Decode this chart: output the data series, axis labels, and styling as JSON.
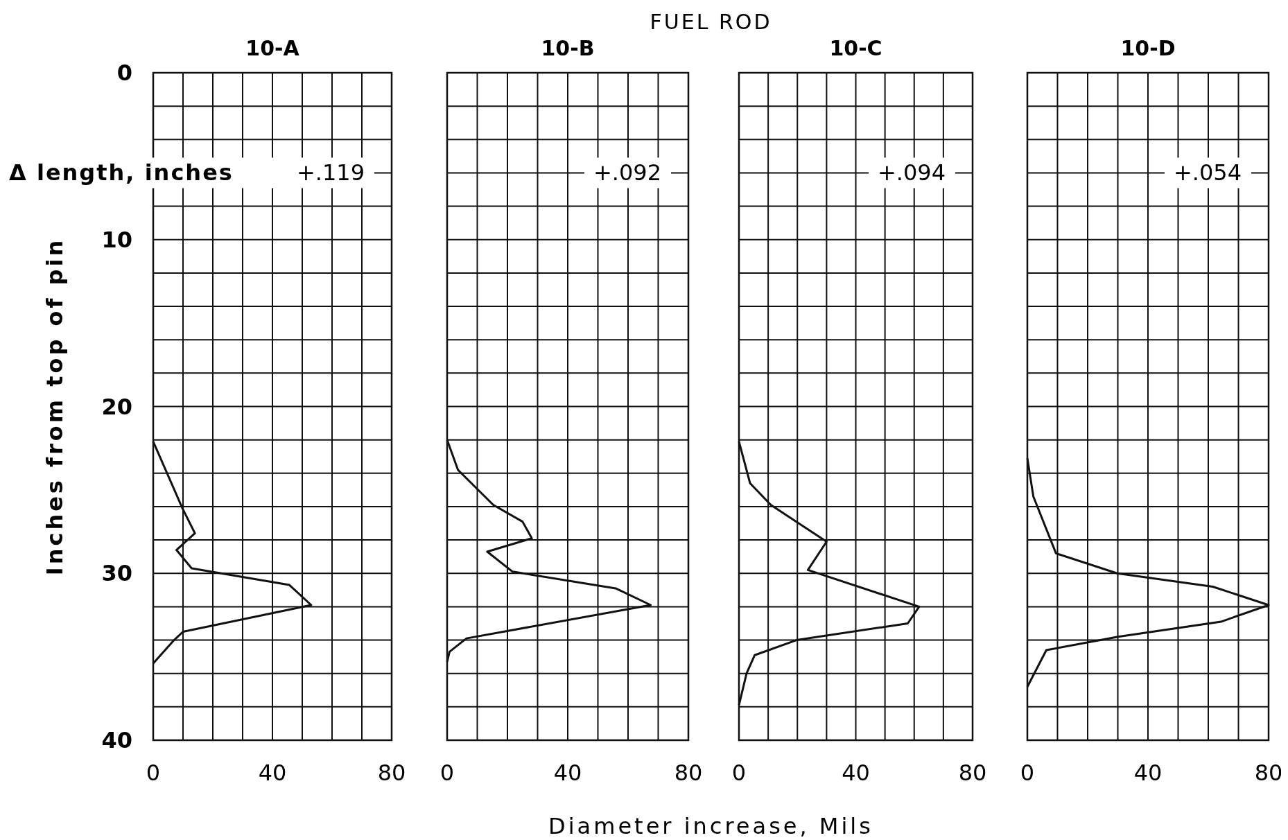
{
  "chart_data": [
    {
      "type": "line",
      "title": "10-A",
      "ylabel": "Inches from top of pin",
      "annotations": [
        "FUEL ROD",
        "Diameter increase, Mils",
        "Δ length, inches",
        "+.119"
      ],
      "x": [
        0,
        9.8,
        14,
        7.8,
        12.9,
        45.7,
        53,
        10,
        7,
        0
      ],
      "values": [
        22.1,
        26.1,
        27.6,
        28.6,
        29.7,
        30.7,
        31.9,
        33.5,
        34,
        35.4
      ],
      "color": "#111111",
      "xlim": [
        0,
        80
      ],
      "ylim": [
        40,
        0
      ],
      "xticks": [
        0,
        {
          "value": 10,
          "label": null
        },
        {
          "value": 20,
          "label": null
        },
        {
          "value": 30,
          "label": null
        },
        40,
        {
          "value": 50,
          "label": null
        },
        {
          "value": 60,
          "label": null
        },
        {
          "value": 70,
          "label": null
        },
        80
      ],
      "yticks": [
        0,
        {
          "value": 2,
          "label": null
        },
        {
          "value": 4,
          "label": null
        },
        {
          "value": 6,
          "label": null
        },
        {
          "value": 8,
          "label": null
        },
        10,
        {
          "value": 12,
          "label": null
        },
        {
          "value": 14,
          "label": null
        },
        {
          "value": 16,
          "label": null
        },
        {
          "value": 18,
          "label": null
        },
        20,
        {
          "value": 22,
          "label": null
        },
        {
          "value": 24,
          "label": null
        },
        {
          "value": 26,
          "label": null
        },
        {
          "value": 28,
          "label": null
        },
        30,
        {
          "value": 32,
          "label": null
        },
        {
          "value": 34,
          "label": null
        },
        {
          "value": 36,
          "label": null
        },
        {
          "value": 38,
          "label": null
        },
        40
      ],
      "grid": true,
      "marker": "none",
      "line_style": "solid"
    },
    {
      "type": "line",
      "title": "10-B",
      "annotations": [
        "+.092"
      ],
      "x": [
        0,
        3.6,
        15.3,
        25,
        28.1,
        13.3,
        21.7,
        55.9,
        67.5,
        6.4,
        0.8,
        0
      ],
      "values": [
        22,
        23.8,
        25.9,
        26.9,
        27.9,
        28.7,
        29.9,
        30.9,
        31.9,
        33.9,
        34.7,
        35.3
      ],
      "color": "#111111",
      "xlim": [
        0,
        80
      ],
      "ylim": [
        40,
        0
      ],
      "xticks": [
        0,
        {
          "value": 10,
          "label": null
        },
        {
          "value": 20,
          "label": null
        },
        {
          "value": 30,
          "label": null
        },
        40,
        {
          "value": 50,
          "label": null
        },
        {
          "value": 60,
          "label": null
        },
        {
          "value": 70,
          "label": null
        },
        80
      ],
      "yticks": [
        0,
        {
          "value": 2,
          "label": null
        },
        {
          "value": 4,
          "label": null
        },
        {
          "value": 6,
          "label": null
        },
        {
          "value": 8,
          "label": null
        },
        10,
        {
          "value": 12,
          "label": null
        },
        {
          "value": 14,
          "label": null
        },
        {
          "value": 16,
          "label": null
        },
        {
          "value": 18,
          "label": null
        },
        20,
        {
          "value": 22,
          "label": null
        },
        {
          "value": 24,
          "label": null
        },
        {
          "value": 26,
          "label": null
        },
        {
          "value": 28,
          "label": null
        },
        30,
        {
          "value": 32,
          "label": null
        },
        {
          "value": 34,
          "label": null
        },
        {
          "value": 36,
          "label": null
        },
        {
          "value": 38,
          "label": null
        },
        40
      ],
      "tick_labels": "x",
      "grid": true,
      "marker": "none",
      "line_style": "solid"
    },
    {
      "type": "line",
      "title": "10-C",
      "annotations": [
        "+.094"
      ],
      "x": [
        0,
        3.8,
        10.9,
        30,
        23.6,
        61.7,
        57.8,
        19.7,
        5.4,
        2.6,
        0
      ],
      "values": [
        22.1,
        24.6,
        25.9,
        28.1,
        29.8,
        32,
        33,
        34,
        34.9,
        36,
        37.9
      ],
      "color": "#111111",
      "xlim": [
        0,
        80
      ],
      "ylim": [
        40,
        0
      ],
      "xticks": [
        0,
        {
          "value": 10,
          "label": null
        },
        {
          "value": 20,
          "label": null
        },
        {
          "value": 30,
          "label": null
        },
        40,
        {
          "value": 50,
          "label": null
        },
        {
          "value": 60,
          "label": null
        },
        {
          "value": 70,
          "label": null
        },
        80
      ],
      "yticks": [
        0,
        {
          "value": 2,
          "label": null
        },
        {
          "value": 4,
          "label": null
        },
        {
          "value": 6,
          "label": null
        },
        {
          "value": 8,
          "label": null
        },
        10,
        {
          "value": 12,
          "label": null
        },
        {
          "value": 14,
          "label": null
        },
        {
          "value": 16,
          "label": null
        },
        {
          "value": 18,
          "label": null
        },
        20,
        {
          "value": 22,
          "label": null
        },
        {
          "value": 24,
          "label": null
        },
        {
          "value": 26,
          "label": null
        },
        {
          "value": 28,
          "label": null
        },
        30,
        {
          "value": 32,
          "label": null
        },
        {
          "value": 34,
          "label": null
        },
        {
          "value": 36,
          "label": null
        },
        {
          "value": 38,
          "label": null
        },
        40
      ],
      "tick_labels": "x",
      "grid": true,
      "marker": "none",
      "line_style": "solid"
    },
    {
      "type": "line",
      "title": "10-D",
      "annotations": [
        "+.054"
      ],
      "x": [
        0,
        2,
        9.5,
        29.8,
        61.5,
        80,
        64.2,
        30.1,
        6.3,
        0
      ],
      "values": [
        23.1,
        25.4,
        28.8,
        30,
        30.8,
        31.9,
        32.9,
        33.8,
        34.6,
        36.8
      ],
      "color": "#111111",
      "xlim": [
        0,
        80
      ],
      "ylim": [
        40,
        0
      ],
      "xticks": [
        0,
        {
          "value": 10,
          "label": null
        },
        {
          "value": 20,
          "label": null
        },
        {
          "value": 30,
          "label": null
        },
        40,
        {
          "value": 50,
          "label": null
        },
        {
          "value": 60,
          "label": null
        },
        {
          "value": 70,
          "label": null
        },
        80
      ],
      "yticks": [
        0,
        {
          "value": 2,
          "label": null
        },
        {
          "value": 4,
          "label": null
        },
        {
          "value": 6,
          "label": null
        },
        {
          "value": 8,
          "label": null
        },
        10,
        {
          "value": 12,
          "label": null
        },
        {
          "value": 14,
          "label": null
        },
        {
          "value": 16,
          "label": null
        },
        {
          "value": 18,
          "label": null
        },
        20,
        {
          "value": 22,
          "label": null
        },
        {
          "value": 24,
          "label": null
        },
        {
          "value": 26,
          "label": null
        },
        {
          "value": 28,
          "label": null
        },
        30,
        {
          "value": 32,
          "label": null
        },
        {
          "value": 34,
          "label": null
        },
        {
          "value": 36,
          "label": null
        },
        {
          "value": 38,
          "label": null
        },
        40
      ],
      "tick_labels": "x",
      "grid": true,
      "marker": "none",
      "line_style": "solid"
    }
  ]
}
